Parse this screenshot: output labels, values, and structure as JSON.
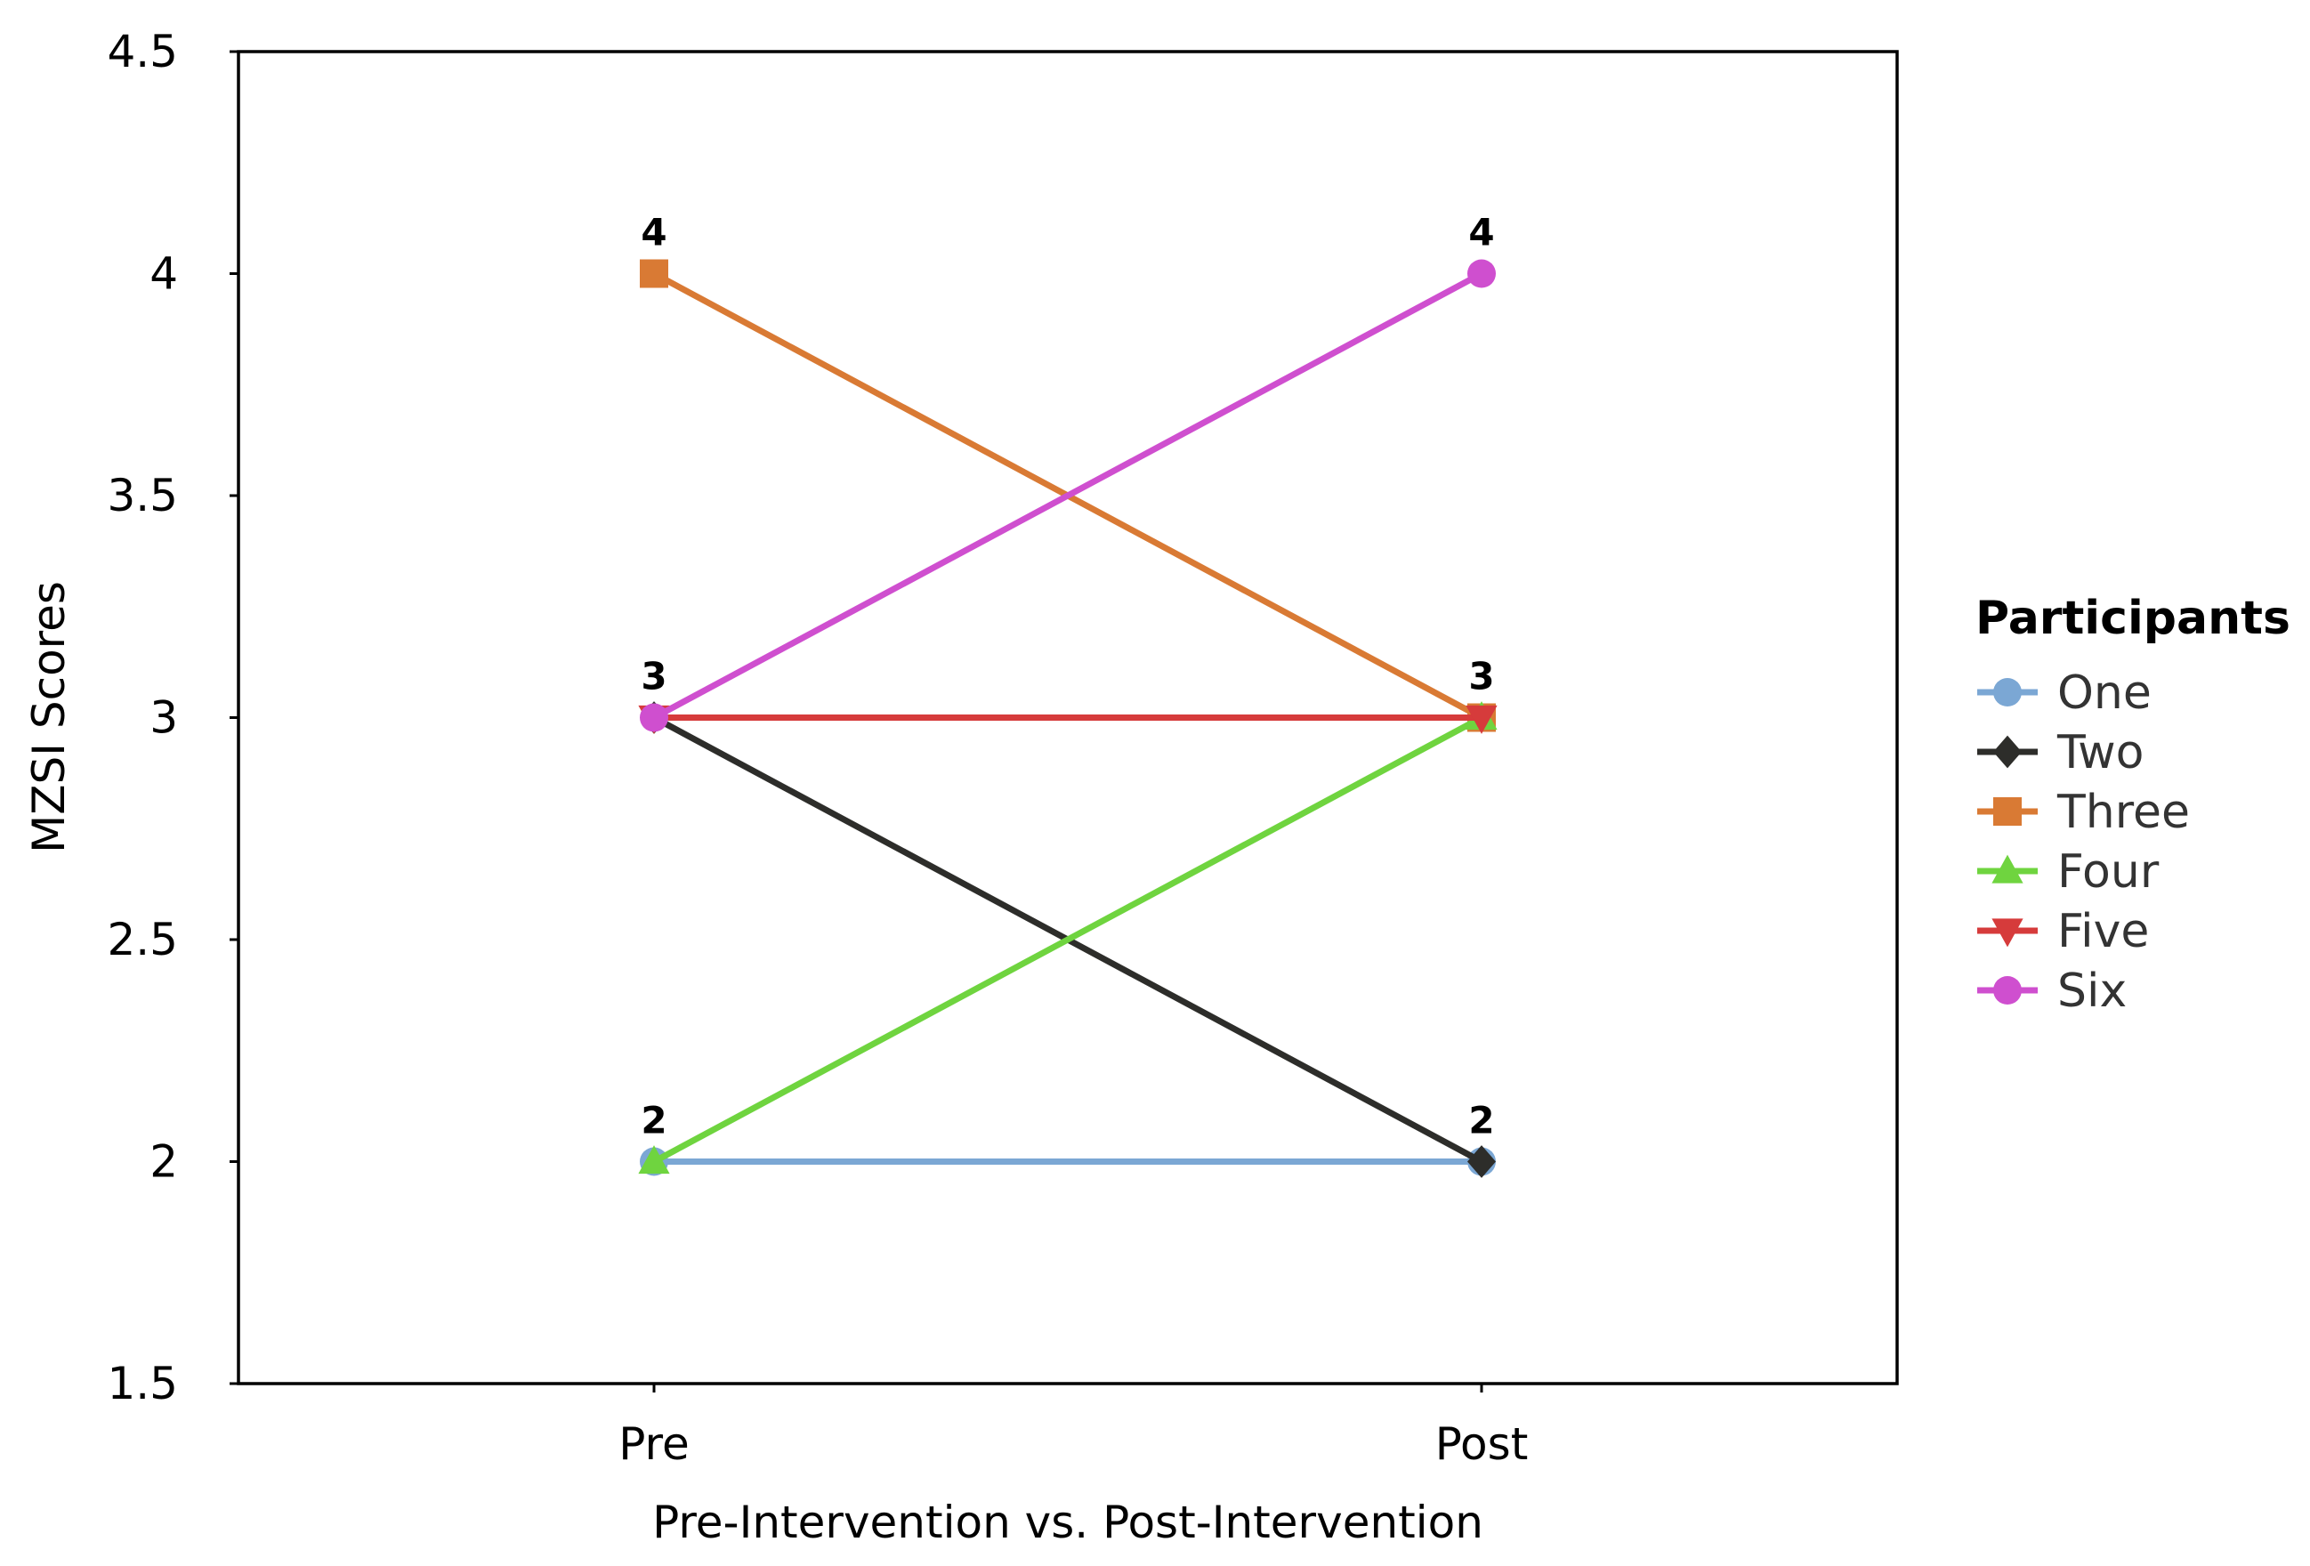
{
  "chart_data": {
    "type": "line",
    "categories": [
      "Pre",
      "Post"
    ],
    "xlabel": "Pre-Intervention vs. Post-Intervention",
    "ylabel": "MZSI Scores",
    "ylim": [
      1.5,
      4.5
    ],
    "yticks": [
      1.5,
      2,
      2.5,
      3,
      3.5,
      4,
      4.5
    ],
    "ytick_labels": [
      "1.5",
      "2",
      "2.5",
      "3",
      "3.5",
      "4",
      "4.5"
    ],
    "grid": false,
    "legend": {
      "title": "Participants",
      "placement": "right"
    },
    "series": [
      {
        "name": "One",
        "values": [
          2,
          2
        ],
        "color": "#7ba7d4",
        "marker": "circle"
      },
      {
        "name": "Two",
        "values": [
          3,
          2
        ],
        "color": "#2d2d2a",
        "marker": "diamond"
      },
      {
        "name": "Three",
        "values": [
          4,
          3
        ],
        "color": "#d97a34",
        "marker": "square"
      },
      {
        "name": "Four",
        "values": [
          2,
          3
        ],
        "color": "#6fd43f",
        "marker": "triangle-up"
      },
      {
        "name": "Five",
        "values": [
          3,
          3
        ],
        "color": "#d63b3b",
        "marker": "triangle-down"
      },
      {
        "name": "Six",
        "values": [
          3,
          4
        ],
        "color": "#cf4fcf",
        "marker": "circle"
      }
    ],
    "annotations": [
      {
        "x": "Pre",
        "y": 4,
        "text": "4"
      },
      {
        "x": "Pre",
        "y": 3,
        "text": "3"
      },
      {
        "x": "Pre",
        "y": 2,
        "text": "2"
      },
      {
        "x": "Post",
        "y": 4,
        "text": "4"
      },
      {
        "x": "Post",
        "y": 3,
        "text": "3"
      },
      {
        "x": "Post",
        "y": 2,
        "text": "2"
      }
    ]
  }
}
